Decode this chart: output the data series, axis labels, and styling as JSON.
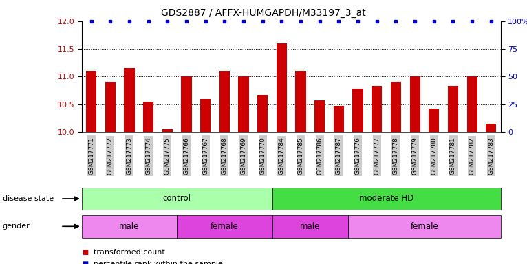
{
  "title": "GDS2887 / AFFX-HUMGAPDH/M33197_3_at",
  "samples": [
    "GSM217771",
    "GSM217772",
    "GSM217773",
    "GSM217774",
    "GSM217775",
    "GSM217766",
    "GSM217767",
    "GSM217768",
    "GSM217769",
    "GSM217770",
    "GSM217784",
    "GSM217785",
    "GSM217786",
    "GSM217787",
    "GSM217776",
    "GSM217777",
    "GSM217778",
    "GSM217779",
    "GSM217780",
    "GSM217781",
    "GSM217782",
    "GSM217783"
  ],
  "bar_values": [
    11.1,
    10.9,
    11.15,
    10.55,
    10.05,
    11.0,
    10.6,
    11.1,
    11.0,
    10.67,
    11.6,
    11.1,
    10.57,
    10.47,
    10.78,
    10.83,
    10.9,
    11.0,
    10.42,
    10.83,
    11.0,
    10.15
  ],
  "bar_color": "#cc0000",
  "percentile_color": "#0000cc",
  "ylim_left": [
    10,
    12
  ],
  "yticks_left": [
    10,
    10.5,
    11,
    11.5,
    12
  ],
  "yticks_right": [
    0,
    25,
    50,
    75,
    100
  ],
  "ytick_labels_right": [
    "0",
    "25",
    "50",
    "75",
    "100%"
  ],
  "gridlines": [
    10.5,
    11.0,
    11.5
  ],
  "disease_groups": [
    {
      "label": "control",
      "start": 0,
      "end": 10,
      "color": "#aaffaa"
    },
    {
      "label": "moderate HD",
      "start": 10,
      "end": 22,
      "color": "#44dd44"
    }
  ],
  "gender_groups": [
    {
      "label": "male",
      "start": 0,
      "end": 5,
      "color": "#ee88ee"
    },
    {
      "label": "female",
      "start": 5,
      "end": 10,
      "color": "#dd44dd"
    },
    {
      "label": "male",
      "start": 10,
      "end": 14,
      "color": "#dd44dd"
    },
    {
      "label": "female",
      "start": 14,
      "end": 22,
      "color": "#ee88ee"
    }
  ],
  "disease_label": "disease state",
  "gender_label": "gender",
  "legend": [
    {
      "label": "transformed count",
      "color": "#cc0000"
    },
    {
      "label": "percentile rank within the sample",
      "color": "#0000cc"
    }
  ],
  "background_color": "#ffffff",
  "tick_bg_color": "#cccccc"
}
